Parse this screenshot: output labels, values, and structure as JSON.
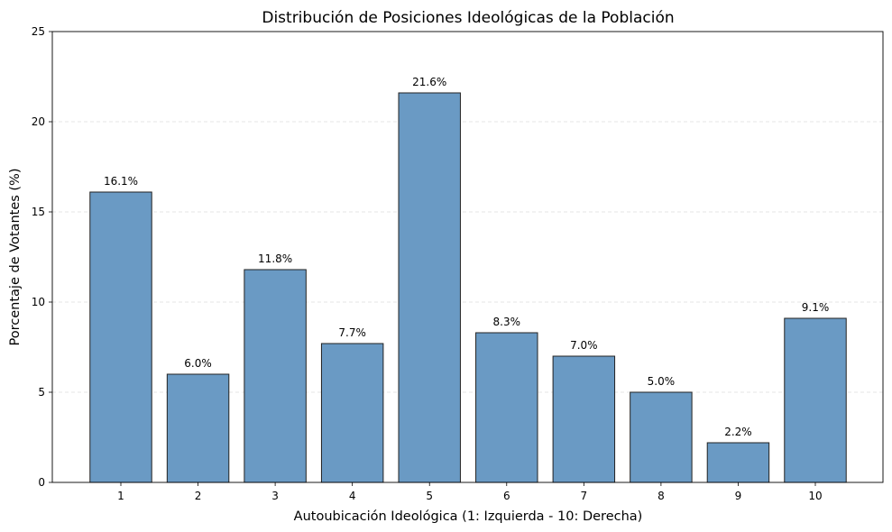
{
  "chart_data": {
    "type": "bar",
    "title": "Distribución de Posiciones Ideológicas de la Población",
    "xlabel": "Autoubicación Ideológica (1: Izquierda - 10: Derecha)",
    "ylabel": "Porcentaje de Votantes (%)",
    "categories": [
      "1",
      "2",
      "3",
      "4",
      "5",
      "6",
      "7",
      "8",
      "9",
      "10"
    ],
    "values": [
      16.1,
      6.0,
      11.8,
      7.7,
      21.6,
      8.3,
      7.0,
      5.0,
      2.2,
      9.1
    ],
    "data_labels": [
      "16.1%",
      "6.0%",
      "11.8%",
      "7.7%",
      "21.6%",
      "8.3%",
      "7.0%",
      "5.0%",
      "2.2%",
      "9.1%"
    ],
    "ylim": [
      0,
      25
    ],
    "yticks": [
      0,
      5,
      10,
      15,
      20,
      25
    ],
    "ytick_labels": [
      "0",
      "5",
      "10",
      "15",
      "20",
      "25"
    ],
    "grid": "y-dashed",
    "bar_color": "#6a9ac4",
    "edge_color": "#222222"
  }
}
